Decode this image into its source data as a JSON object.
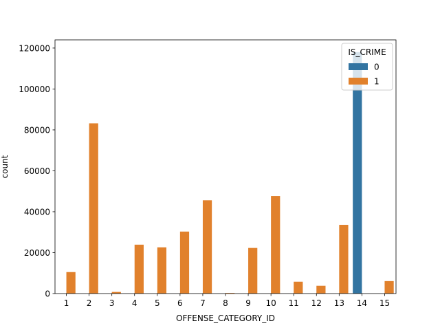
{
  "chart_data": {
    "type": "bar",
    "xlabel": "OFFENSE_CATEGORY_ID",
    "ylabel": "count",
    "categories": [
      "1",
      "2",
      "3",
      "4",
      "5",
      "6",
      "7",
      "8",
      "9",
      "10",
      "11",
      "12",
      "13",
      "14",
      "15"
    ],
    "ylim": [
      0,
      124000
    ],
    "yticks": [
      0,
      20000,
      40000,
      60000,
      80000,
      100000,
      120000
    ],
    "grid": false,
    "legend": {
      "title": "IS_CRIME",
      "position": "top-right"
    },
    "series": [
      {
        "name": "0",
        "color": "#3274a1",
        "values": [
          0,
          0,
          0,
          0,
          0,
          0,
          0,
          0,
          0,
          0,
          0,
          0,
          0,
          118000,
          0
        ]
      },
      {
        "name": "1",
        "color": "#e1812c",
        "values": [
          10500,
          83200,
          800,
          23900,
          22600,
          30300,
          45600,
          300,
          22300,
          47700,
          5800,
          3800,
          33600,
          0,
          6100
        ]
      }
    ]
  }
}
